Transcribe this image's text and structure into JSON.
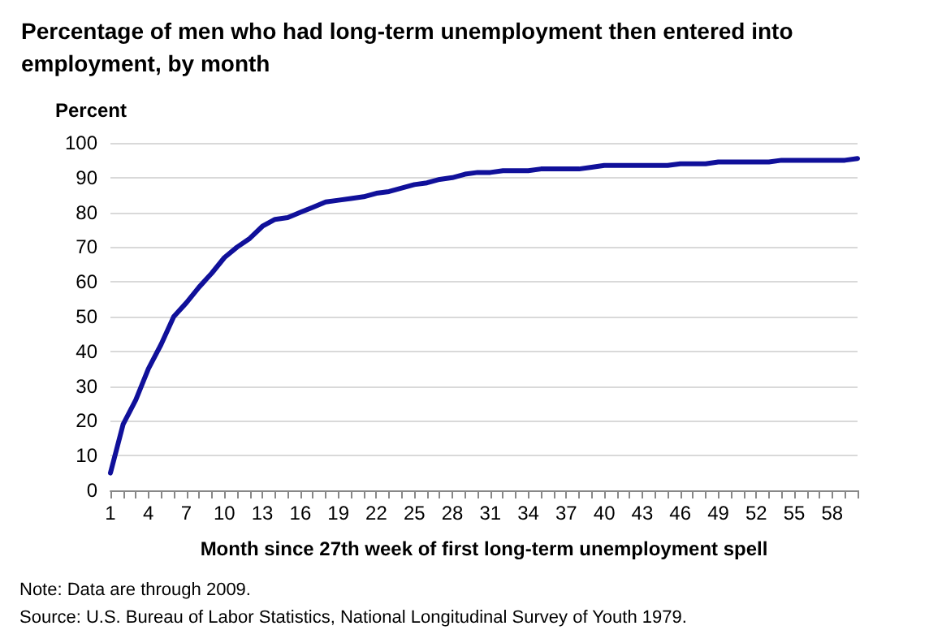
{
  "chart_data": {
    "type": "line",
    "title": "Percentage of men who had long-term unemployment then entered into employment, by month",
    "xlabel": "Month since 27th week of first long-term unemployment spell",
    "ylabel": "Percent",
    "categories": [
      "1",
      null,
      null,
      "4",
      null,
      null,
      "7",
      null,
      null,
      "10",
      null,
      null,
      "13",
      null,
      null,
      "16",
      null,
      null,
      "19",
      null,
      null,
      "22",
      null,
      null,
      "25",
      null,
      null,
      "28",
      null,
      null,
      "31",
      null,
      null,
      "34",
      null,
      null,
      "37",
      null,
      null,
      "40",
      null,
      null,
      "43",
      null,
      null,
      "46",
      null,
      null,
      "49",
      null,
      null,
      "52",
      null,
      null,
      "55",
      null,
      null,
      "58",
      null,
      null
    ],
    "series": [
      {
        "color": "#10109a",
        "values": [
          5,
          19,
          26,
          35,
          42,
          50,
          54,
          58.5,
          62.5,
          67,
          70,
          72.5,
          76,
          78,
          78.5,
          80,
          81.5,
          83,
          83.5,
          84,
          84.5,
          85.5,
          86,
          87,
          88,
          88.5,
          89.5,
          90,
          91,
          91.5,
          91.5,
          92,
          92,
          92,
          92.5,
          92.5,
          92.5,
          92.5,
          93,
          93.5,
          93.5,
          93.5,
          93.5,
          93.5,
          93.5,
          94,
          94,
          94,
          94.5,
          94.5,
          94.5,
          94.5,
          94.5,
          95,
          95,
          95,
          95,
          95,
          95,
          95.5
        ]
      }
    ],
    "ylim": [
      0,
      100
    ],
    "yticks": [
      0,
      10,
      20,
      30,
      40,
      50,
      60,
      70,
      80,
      90,
      100
    ],
    "grid": "y",
    "marker": "none",
    "line_style": "solid",
    "annotations": [
      "Note: Data are through 2009.",
      "Source: U.S. Bureau of Labor Statistics, National Longitudinal Survey of Youth 1979."
    ]
  }
}
